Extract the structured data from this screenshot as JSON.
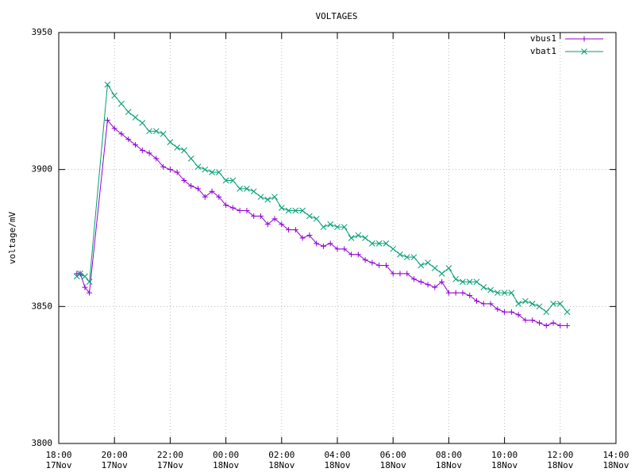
{
  "chart_data": {
    "type": "line",
    "title": "VOLTAGES",
    "y_label": "voltage/mV",
    "x": [
      18.65,
      18.77,
      18.94,
      19.1,
      19.75,
      20,
      20.25,
      20.5,
      20.75,
      21,
      21.25,
      21.5,
      21.75,
      22,
      22.25,
      22.5,
      22.75,
      23,
      23.25,
      23.5,
      23.75,
      24,
      24.25,
      24.5,
      24.75,
      25,
      25.25,
      25.5,
      25.75,
      26,
      26.25,
      26.5,
      26.75,
      27,
      27.25,
      27.5,
      27.75,
      28,
      28.25,
      28.5,
      28.75,
      29,
      29.25,
      29.5,
      29.75,
      30,
      30.25,
      30.5,
      30.75,
      31,
      31.25,
      31.5,
      31.75,
      32,
      32.25,
      32.5,
      32.75,
      33,
      33.25,
      33.5,
      33.75,
      34,
      34.25,
      34.5,
      34.75,
      35,
      35.25,
      35.5,
      35.75,
      36,
      36.25
    ],
    "series": [
      {
        "name": "vbus1",
        "color": "#9400d3",
        "marker": "plus",
        "values": [
          3862,
          3862,
          3857,
          3855,
          3918,
          3915,
          3913,
          3911,
          3909,
          3907,
          3906,
          3904,
          3901,
          3900,
          3899,
          3896,
          3894,
          3893,
          3890,
          3892,
          3890,
          3887,
          3886,
          3885,
          3885,
          3883,
          3883,
          3880,
          3882,
          3880,
          3878,
          3878,
          3875,
          3876,
          3873,
          3872,
          3873,
          3871,
          3871,
          3869,
          3869,
          3867,
          3866,
          3865,
          3865,
          3862,
          3862,
          3862,
          3860,
          3859,
          3858,
          3857,
          3859,
          3855,
          3855,
          3855,
          3854,
          3852,
          3851,
          3851,
          3849,
          3848,
          3848,
          3847,
          3845,
          3845,
          3844,
          3843,
          3844,
          3843,
          3843
        ]
      },
      {
        "name": "vbat1",
        "color": "#009e73",
        "marker": "cross",
        "values": [
          3861,
          3862,
          3861,
          3859,
          3931,
          3927,
          3924,
          3921,
          3919,
          3917,
          3914,
          3914,
          3913,
          3910,
          3908,
          3907,
          3904,
          3901,
          3900,
          3899,
          3899,
          3896,
          3896,
          3893,
          3893,
          3892,
          3890,
          3889,
          3890,
          3886,
          3885,
          3885,
          3885,
          3883,
          3882,
          3879,
          3880,
          3879,
          3879,
          3875,
          3876,
          3875,
          3873,
          3873,
          3873,
          3871,
          3869,
          3868,
          3868,
          3865,
          3866,
          3864,
          3862,
          3864,
          3860,
          3859,
          3859,
          3859,
          3857,
          3856,
          3855,
          3855,
          3855,
          3851,
          3852,
          3851,
          3850,
          3848,
          3851,
          3851,
          3848
        ]
      }
    ],
    "xlim": [
      18,
      38
    ],
    "xticks": [
      {
        "value": 18,
        "label": "18:00\n17Nov"
      },
      {
        "value": 20,
        "label": "20:00\n17Nov"
      },
      {
        "value": 22,
        "label": "22:00\n17Nov"
      },
      {
        "value": 24,
        "label": "00:00\n18Nov"
      },
      {
        "value": 26,
        "label": "02:00\n18Nov"
      },
      {
        "value": 28,
        "label": "04:00\n18Nov"
      },
      {
        "value": 30,
        "label": "06:00\n18Nov"
      },
      {
        "value": 32,
        "label": "08:00\n18Nov"
      },
      {
        "value": 34,
        "label": "10:00\n18Nov"
      },
      {
        "value": 36,
        "label": "12:00\n18Nov"
      },
      {
        "value": 38,
        "label": "14:00\n18Nov"
      }
    ],
    "ylim": [
      3800,
      3950
    ],
    "yticks": [
      3800,
      3850,
      3900,
      3950
    ],
    "grid": true,
    "legend": "top-right"
  }
}
